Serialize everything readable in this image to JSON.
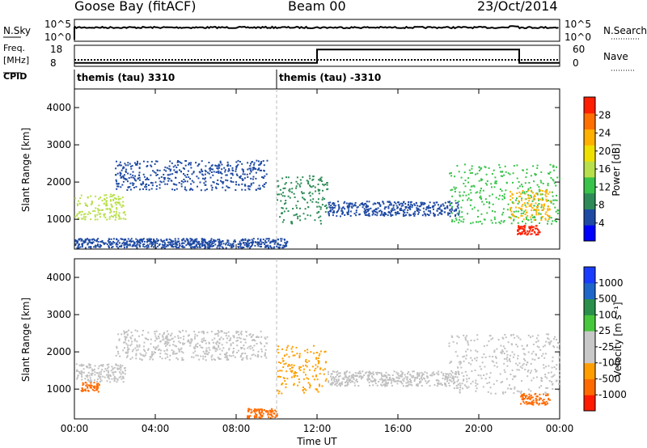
{
  "header": {
    "station": "Goose Bay (fitACF)",
    "beam": "Beam 00",
    "date": "23/Oct/2014"
  },
  "noise_panel": {
    "left_label": "N.Sky",
    "left_ticks": [
      "10^5",
      "10^0"
    ],
    "right_ticks": [
      "10^5",
      "10^0"
    ],
    "right_label": "N.Search"
  },
  "freq_panel": {
    "left_label_lines": [
      "Freq.",
      "[MHz]"
    ],
    "left_ticks": [
      "18",
      "8"
    ],
    "right_ticks": [
      "60",
      "0"
    ],
    "right_label": "Nave",
    "nave_step": [
      {
        "t": 0.0,
        "v": 10
      },
      {
        "t": 12.0,
        "v": 10
      },
      {
        "t": 12.0,
        "v": 48
      },
      {
        "t": 22.0,
        "v": 48
      },
      {
        "t": 22.0,
        "v": 10
      },
      {
        "t": 24.0,
        "v": 10
      }
    ]
  },
  "cpid": {
    "label": "CPID",
    "entries": [
      {
        "t": 0.0,
        "name": "themis (tau) 3310"
      },
      {
        "t": 10.0,
        "name": "themis (tau) -3310"
      }
    ]
  },
  "colors": {
    "power_scale": [
      "#0000ff",
      "#1f4aa3",
      "#2e8b57",
      "#39c34a",
      "#b8e04a",
      "#f0e000",
      "#ffb000",
      "#ff7000",
      "#ff1e00"
    ],
    "velocity_scale": [
      "#1a3cff",
      "#1e66c8",
      "#2a8f4a",
      "#47c83c",
      "#c8c8c8",
      "#c8c8c8",
      "#ff9e00",
      "#ff6a00",
      "#ff1a00"
    ],
    "ground_scatter": "#c0c0c0"
  },
  "chart_data": [
    {
      "type": "heatmap",
      "panel": "power",
      "ylabel": "Slant Range [km]",
      "x_ticks": [
        "00:00",
        "04:00",
        "08:00",
        "12:00",
        "16:00",
        "20:00",
        "00:00"
      ],
      "y_ticks": [
        "1000",
        "2000",
        "3000",
        "4000"
      ],
      "xlim": [
        0,
        24
      ],
      "ylim": [
        200,
        4500
      ],
      "colorbar": {
        "label": "Power [dB]",
        "ticks": [
          "4",
          "8",
          "12",
          "16",
          "20",
          "24",
          "28"
        ],
        "range": [
          0,
          30
        ]
      },
      "echo_regions": [
        {
          "t0": 0.0,
          "t1": 2.5,
          "r0": 1000,
          "r1": 1700,
          "value": 14
        },
        {
          "t0": 2.0,
          "t1": 9.5,
          "r0": 1800,
          "r1": 2600,
          "value": 6
        },
        {
          "t0": 10.0,
          "t1": 12.5,
          "r0": 900,
          "r1": 2200,
          "value": 8
        },
        {
          "t0": 12.5,
          "t1": 19.0,
          "r0": 1100,
          "r1": 1500,
          "value": 5
        },
        {
          "t0": 18.5,
          "t1": 24.0,
          "r0": 900,
          "r1": 2500,
          "value": 10
        },
        {
          "t0": 21.5,
          "t1": 23.5,
          "r0": 1000,
          "r1": 1800,
          "value": 22
        },
        {
          "t0": 21.8,
          "t1": 23.0,
          "r0": 600,
          "r1": 850,
          "value": 28
        },
        {
          "t0": 0.0,
          "t1": 10.5,
          "r0": 250,
          "r1": 500,
          "value": 6
        }
      ]
    },
    {
      "type": "heatmap",
      "panel": "velocity",
      "ylabel": "Slant Range [km]",
      "xlabel": "Time UT",
      "x_ticks": [
        "00:00",
        "04:00",
        "08:00",
        "12:00",
        "16:00",
        "20:00",
        "00:00"
      ],
      "y_ticks": [
        "1000",
        "2000",
        "3000",
        "4000"
      ],
      "xlim": [
        0,
        24
      ],
      "ylim": [
        200,
        4500
      ],
      "colorbar": {
        "label": "Velocity [m s⁻¹]",
        "ticks": [
          "1000",
          "500",
          "100",
          "25",
          "-25",
          "-100",
          "-500",
          "-1000"
        ]
      },
      "echo_regions": [
        {
          "t0": 0.3,
          "t1": 1.2,
          "r0": 950,
          "r1": 1200,
          "value": -250
        },
        {
          "t0": 0.0,
          "t1": 2.5,
          "r0": 1200,
          "r1": 1700,
          "value": 0
        },
        {
          "t0": 2.0,
          "t1": 9.5,
          "r0": 1800,
          "r1": 2600,
          "value": 0
        },
        {
          "t0": 10.0,
          "t1": 12.5,
          "r0": 900,
          "r1": 2200,
          "value": -60
        },
        {
          "t0": 12.5,
          "t1": 19.0,
          "r0": 1100,
          "r1": 1500,
          "value": 0
        },
        {
          "t0": 18.5,
          "t1": 24.0,
          "r0": 900,
          "r1": 2500,
          "value": 0
        },
        {
          "t0": 22.0,
          "t1": 23.5,
          "r0": 600,
          "r1": 900,
          "value": -300
        },
        {
          "t0": 8.5,
          "t1": 10.0,
          "r0": 250,
          "r1": 500,
          "value": -200
        }
      ]
    }
  ]
}
